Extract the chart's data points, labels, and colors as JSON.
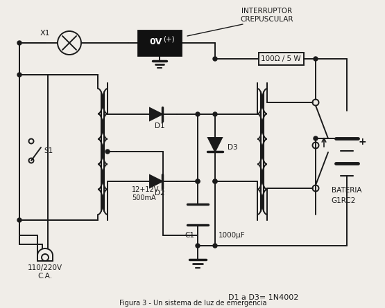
{
  "bg_color": "#f0ede8",
  "line_color": "#1a1a1a",
  "text_color": "#1a1a1a",
  "labels": {
    "X1": "X1",
    "S1": "S1",
    "D1": "D1",
    "D2": "D2",
    "D3": "D3",
    "C1": "C1",
    "cap_val": "1000μF",
    "transformer": "12+12V\n500mA",
    "mains": "110/220V\nC.A.",
    "resistor": "100Ω / 5 W",
    "ic_label": "INTERRUPTOR\nCREPUSCULAR",
    "ic_box": "0V",
    "ic_plus": "(+)",
    "battery": "BATERIA",
    "relay": "G1RC2",
    "diode_spec": "D1 a D3= 1N4002"
  }
}
